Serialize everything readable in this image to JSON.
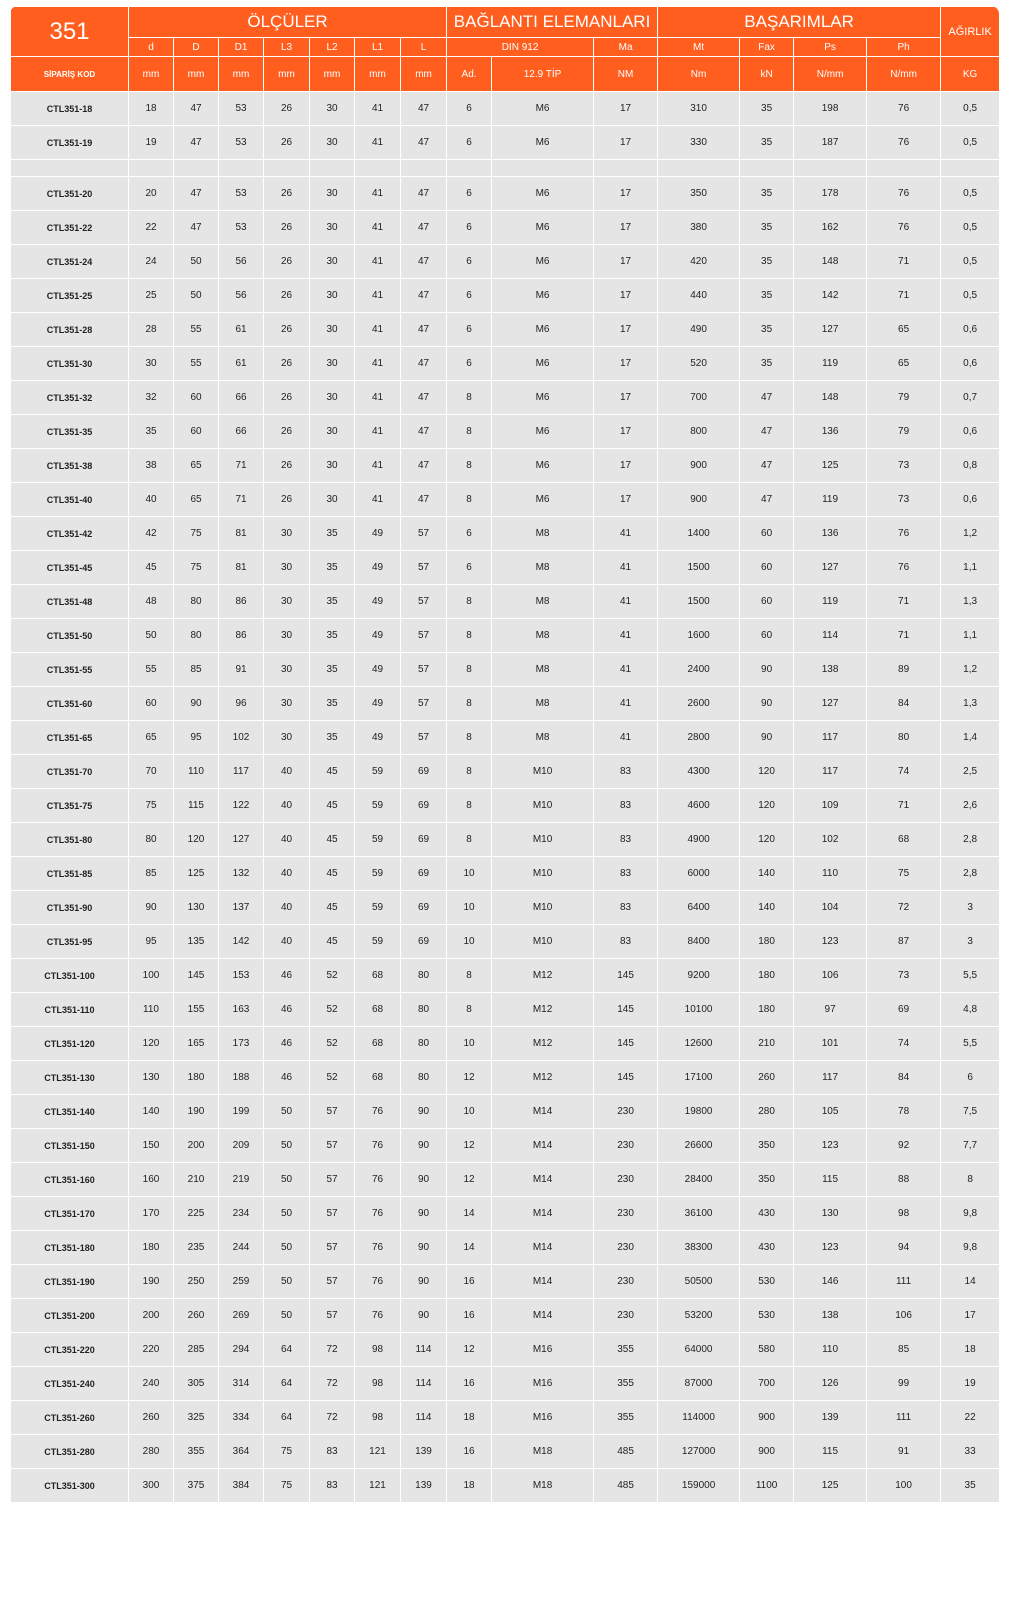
{
  "header": {
    "series": "351",
    "groups": [
      "ÖLÇÜLER",
      "BAĞLANTI ELEMANLARI",
      "BAŞARIMLAR",
      "AĞIRLIK"
    ],
    "sub": [
      "d",
      "D",
      "D1",
      "L3",
      "L2",
      "L1",
      "L",
      "DIN 912",
      "Ma",
      "Mt",
      "Fax",
      "Ps",
      "Ph"
    ],
    "units": [
      "SİPARİŞ KOD",
      "mm",
      "mm",
      "mm",
      "mm",
      "mm",
      "mm",
      "mm",
      "Ad.",
      "12.9 TİP",
      "NM",
      "Nm",
      "kN",
      "N/mm",
      "N/mm",
      "KG"
    ]
  },
  "rows": [
    [
      "CTL351-18",
      "18",
      "47",
      "53",
      "26",
      "30",
      "41",
      "47",
      "6",
      "M6",
      "17",
      "310",
      "35",
      "198",
      "76",
      "0,5"
    ],
    [
      "CTL351-19",
      "19",
      "47",
      "53",
      "26",
      "30",
      "41",
      "47",
      "6",
      "M6",
      "17",
      "330",
      "35",
      "187",
      "76",
      "0,5"
    ],
    [],
    [
      "CTL351-20",
      "20",
      "47",
      "53",
      "26",
      "30",
      "41",
      "47",
      "6",
      "M6",
      "17",
      "350",
      "35",
      "178",
      "76",
      "0,5"
    ],
    [
      "CTL351-22",
      "22",
      "47",
      "53",
      "26",
      "30",
      "41",
      "47",
      "6",
      "M6",
      "17",
      "380",
      "35",
      "162",
      "76",
      "0,5"
    ],
    [
      "CTL351-24",
      "24",
      "50",
      "56",
      "26",
      "30",
      "41",
      "47",
      "6",
      "M6",
      "17",
      "420",
      "35",
      "148",
      "71",
      "0,5"
    ],
    [
      "CTL351-25",
      "25",
      "50",
      "56",
      "26",
      "30",
      "41",
      "47",
      "6",
      "M6",
      "17",
      "440",
      "35",
      "142",
      "71",
      "0,5"
    ],
    [
      "CTL351-28",
      "28",
      "55",
      "61",
      "26",
      "30",
      "41",
      "47",
      "6",
      "M6",
      "17",
      "490",
      "35",
      "127",
      "65",
      "0,6"
    ],
    [
      "CTL351-30",
      "30",
      "55",
      "61",
      "26",
      "30",
      "41",
      "47",
      "6",
      "M6",
      "17",
      "520",
      "35",
      "119",
      "65",
      "0,6"
    ],
    [
      "CTL351-32",
      "32",
      "60",
      "66",
      "26",
      "30",
      "41",
      "47",
      "8",
      "M6",
      "17",
      "700",
      "47",
      "148",
      "79",
      "0,7"
    ],
    [
      "CTL351-35",
      "35",
      "60",
      "66",
      "26",
      "30",
      "41",
      "47",
      "8",
      "M6",
      "17",
      "800",
      "47",
      "136",
      "79",
      "0,6"
    ],
    [
      "CTL351-38",
      "38",
      "65",
      "71",
      "26",
      "30",
      "41",
      "47",
      "8",
      "M6",
      "17",
      "900",
      "47",
      "125",
      "73",
      "0,8"
    ],
    [
      "CTL351-40",
      "40",
      "65",
      "71",
      "26",
      "30",
      "41",
      "47",
      "8",
      "M6",
      "17",
      "900",
      "47",
      "119",
      "73",
      "0,6"
    ],
    [
      "CTL351-42",
      "42",
      "75",
      "81",
      "30",
      "35",
      "49",
      "57",
      "6",
      "M8",
      "41",
      "1400",
      "60",
      "136",
      "76",
      "1,2"
    ],
    [
      "CTL351-45",
      "45",
      "75",
      "81",
      "30",
      "35",
      "49",
      "57",
      "6",
      "M8",
      "41",
      "1500",
      "60",
      "127",
      "76",
      "1,1"
    ],
    [
      "CTL351-48",
      "48",
      "80",
      "86",
      "30",
      "35",
      "49",
      "57",
      "8",
      "M8",
      "41",
      "1500",
      "60",
      "119",
      "71",
      "1,3"
    ],
    [
      "CTL351-50",
      "50",
      "80",
      "86",
      "30",
      "35",
      "49",
      "57",
      "8",
      "M8",
      "41",
      "1600",
      "60",
      "114",
      "71",
      "1,1"
    ],
    [
      "CTL351-55",
      "55",
      "85",
      "91",
      "30",
      "35",
      "49",
      "57",
      "8",
      "M8",
      "41",
      "2400",
      "90",
      "138",
      "89",
      "1,2"
    ],
    [
      "CTL351-60",
      "60",
      "90",
      "96",
      "30",
      "35",
      "49",
      "57",
      "8",
      "M8",
      "41",
      "2600",
      "90",
      "127",
      "84",
      "1,3"
    ],
    [
      "CTL351-65",
      "65",
      "95",
      "102",
      "30",
      "35",
      "49",
      "57",
      "8",
      "M8",
      "41",
      "2800",
      "90",
      "117",
      "80",
      "1,4"
    ],
    [
      "CTL351-70",
      "70",
      "110",
      "117",
      "40",
      "45",
      "59",
      "69",
      "8",
      "M10",
      "83",
      "4300",
      "120",
      "117",
      "74",
      "2,5"
    ],
    [
      "CTL351-75",
      "75",
      "115",
      "122",
      "40",
      "45",
      "59",
      "69",
      "8",
      "M10",
      "83",
      "4600",
      "120",
      "109",
      "71",
      "2,6"
    ],
    [
      "CTL351-80",
      "80",
      "120",
      "127",
      "40",
      "45",
      "59",
      "69",
      "8",
      "M10",
      "83",
      "4900",
      "120",
      "102",
      "68",
      "2,8"
    ],
    [
      "CTL351-85",
      "85",
      "125",
      "132",
      "40",
      "45",
      "59",
      "69",
      "10",
      "M10",
      "83",
      "6000",
      "140",
      "110",
      "75",
      "2,8"
    ],
    [
      "CTL351-90",
      "90",
      "130",
      "137",
      "40",
      "45",
      "59",
      "69",
      "10",
      "M10",
      "83",
      "6400",
      "140",
      "104",
      "72",
      "3"
    ],
    [
      "CTL351-95",
      "95",
      "135",
      "142",
      "40",
      "45",
      "59",
      "69",
      "10",
      "M10",
      "83",
      "8400",
      "180",
      "123",
      "87",
      "3"
    ],
    [
      "CTL351-100",
      "100",
      "145",
      "153",
      "46",
      "52",
      "68",
      "80",
      "8",
      "M12",
      "145",
      "9200",
      "180",
      "106",
      "73",
      "5,5"
    ],
    [
      "CTL351-110",
      "110",
      "155",
      "163",
      "46",
      "52",
      "68",
      "80",
      "8",
      "M12",
      "145",
      "10100",
      "180",
      "97",
      "69",
      "4,8"
    ],
    [
      "CTL351-120",
      "120",
      "165",
      "173",
      "46",
      "52",
      "68",
      "80",
      "10",
      "M12",
      "145",
      "12600",
      "210",
      "101",
      "74",
      "5,5"
    ],
    [
      "CTL351-130",
      "130",
      "180",
      "188",
      "46",
      "52",
      "68",
      "80",
      "12",
      "M12",
      "145",
      "17100",
      "260",
      "117",
      "84",
      "6"
    ],
    [
      "CTL351-140",
      "140",
      "190",
      "199",
      "50",
      "57",
      "76",
      "90",
      "10",
      "M14",
      "230",
      "19800",
      "280",
      "105",
      "78",
      "7,5"
    ],
    [
      "CTL351-150",
      "150",
      "200",
      "209",
      "50",
      "57",
      "76",
      "90",
      "12",
      "M14",
      "230",
      "26600",
      "350",
      "123",
      "92",
      "7,7"
    ],
    [
      "CTL351-160",
      "160",
      "210",
      "219",
      "50",
      "57",
      "76",
      "90",
      "12",
      "M14",
      "230",
      "28400",
      "350",
      "115",
      "88",
      "8"
    ],
    [
      "CTL351-170",
      "170",
      "225",
      "234",
      "50",
      "57",
      "76",
      "90",
      "14",
      "M14",
      "230",
      "36100",
      "430",
      "130",
      "98",
      "9,8"
    ],
    [
      "CTL351-180",
      "180",
      "235",
      "244",
      "50",
      "57",
      "76",
      "90",
      "14",
      "M14",
      "230",
      "38300",
      "430",
      "123",
      "94",
      "9,8"
    ],
    [
      "CTL351-190",
      "190",
      "250",
      "259",
      "50",
      "57",
      "76",
      "90",
      "16",
      "M14",
      "230",
      "50500",
      "530",
      "146",
      "111",
      "14"
    ],
    [
      "CTL351-200",
      "200",
      "260",
      "269",
      "50",
      "57",
      "76",
      "90",
      "16",
      "M14",
      "230",
      "53200",
      "530",
      "138",
      "106",
      "17"
    ],
    [
      "CTL351-220",
      "220",
      "285",
      "294",
      "64",
      "72",
      "98",
      "114",
      "12",
      "M16",
      "355",
      "64000",
      "580",
      "110",
      "85",
      "18"
    ],
    [
      "CTL351-240",
      "240",
      "305",
      "314",
      "64",
      "72",
      "98",
      "114",
      "16",
      "M16",
      "355",
      "87000",
      "700",
      "126",
      "99",
      "19"
    ],
    [
      "CTL351-260",
      "260",
      "325",
      "334",
      "64",
      "72",
      "98",
      "114",
      "18",
      "M16",
      "355",
      "114000",
      "900",
      "139",
      "111",
      "22"
    ],
    [
      "CTL351-280",
      "280",
      "355",
      "364",
      "75",
      "83",
      "121",
      "139",
      "16",
      "M18",
      "485",
      "127000",
      "900",
      "115",
      "91",
      "33"
    ],
    [
      "CTL351-300",
      "300",
      "375",
      "384",
      "75",
      "83",
      "121",
      "139",
      "18",
      "M18",
      "485",
      "159000",
      "1100",
      "125",
      "100",
      "35"
    ]
  ],
  "colors": {
    "header_bg": "#ff5e1f",
    "row_bg": "#e5e5e5"
  }
}
